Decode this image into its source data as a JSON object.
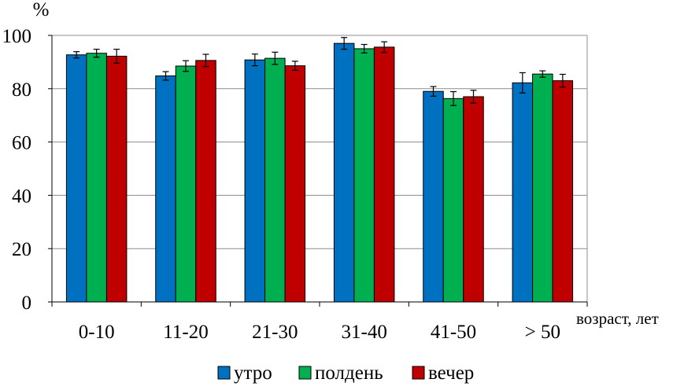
{
  "chart_data": {
    "type": "bar",
    "title": "",
    "ylabel": "%",
    "xlabel": "возраст, лет",
    "categories": [
      "0-10",
      "11-20",
      "21-30",
      "31-40",
      "41-50",
      "> 50"
    ],
    "ylim": [
      0,
      100
    ],
    "yticks": [
      0,
      20,
      40,
      60,
      80,
      100
    ],
    "grid": true,
    "legend_position": "bottom",
    "series": [
      {
        "name": "утро",
        "color": "#0070C0",
        "values": [
          92.7,
          84.8,
          90.8,
          97.0,
          79.0,
          82.2
        ],
        "errors": [
          1.2,
          1.6,
          2.2,
          2.2,
          1.8,
          3.8
        ]
      },
      {
        "name": "полдень",
        "color": "#00B050",
        "values": [
          93.3,
          88.5,
          91.4,
          95.0,
          76.3,
          85.5
        ],
        "errors": [
          1.5,
          2.0,
          2.3,
          1.6,
          2.6,
          1.2
        ]
      },
      {
        "name": "вечер",
        "color": "#C00000",
        "values": [
          92.2,
          90.6,
          88.6,
          95.6,
          77.0,
          83.0
        ],
        "errors": [
          2.6,
          2.3,
          1.7,
          2.0,
          2.4,
          2.4
        ]
      }
    ]
  }
}
